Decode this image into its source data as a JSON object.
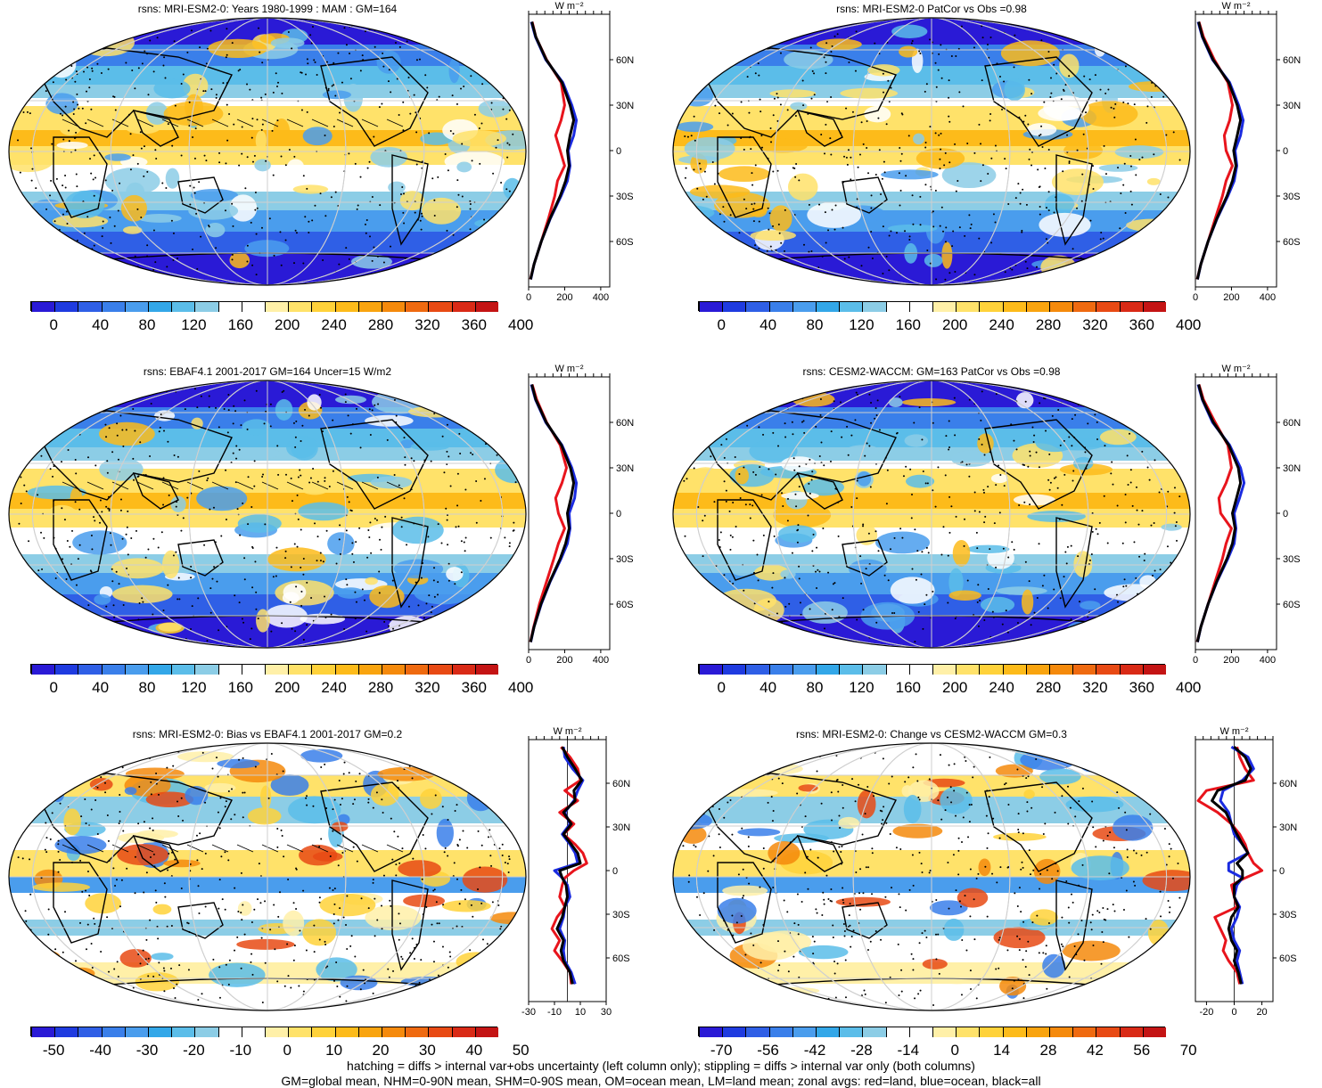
{
  "footer": {
    "line1": "hatching = diffs > internal var+obs uncertainty (left column only); stippling = diffs > internal var only (both columns)",
    "line2": "GM=global mean, NHM=0-90N mean, SHM=0-90S mean, OM=ocean mean, LM=land mean; zonal avgs: red=land, blue=ocean, black=all"
  },
  "units_label": "W m⁻²",
  "lat_labels": [
    "60N",
    "30N",
    "0",
    "30S",
    "60S"
  ],
  "colors": {
    "land": "#e8141c",
    "ocean": "#1a2be0",
    "all": "#000000"
  },
  "abs_palette": [
    "#2a1ad6",
    "#1f3be0",
    "#2f5fe6",
    "#3a7fea",
    "#4a9ded",
    "#33a7e8",
    "#5bbde9",
    "#8ccde6",
    "#ffffff",
    "#ffffff",
    "#fff0a8",
    "#ffe26a",
    "#ffd23a",
    "#fdbb1a",
    "#f9a40f",
    "#f58a0c",
    "#ef6a10",
    "#e84a14",
    "#d92a16",
    "#c41414"
  ],
  "diff_palette": [
    "#2a1ad6",
    "#1f3be0",
    "#2f5fe6",
    "#3a7fea",
    "#4a9ded",
    "#33a7e8",
    "#5bbde9",
    "#8ccde6",
    "#ffffff",
    "#ffffff",
    "#fff0a8",
    "#ffe26a",
    "#ffd23a",
    "#fdbb1a",
    "#f9a40f",
    "#f58a0c",
    "#ef6a10",
    "#e84a14",
    "#d92a16",
    "#c41414"
  ],
  "chart_data": [
    {
      "type": "heatmap",
      "title": "rsns: MRI-ESM2-0: Years 1980-1999 : MAM : GM=164",
      "colorbar": {
        "ticks": [
          "0",
          "40",
          "80",
          "120",
          "160",
          "200",
          "240",
          "280",
          "320",
          "360",
          "400"
        ]
      },
      "zonal": {
        "xlim": [
          0,
          450
        ],
        "xticks": [
          "0",
          "200",
          "400"
        ],
        "lat": [
          85,
          75,
          60,
          45,
          30,
          20,
          10,
          0,
          -10,
          -20,
          -30,
          -45,
          -60,
          -75,
          -85
        ],
        "land": [
          20,
          40,
          100,
          180,
          200,
          180,
          150,
          175,
          200,
          160,
          145,
          110,
          70,
          30,
          10
        ],
        "ocean": [
          15,
          38,
          95,
          190,
          240,
          265,
          250,
          220,
          230,
          215,
          180,
          120,
          70,
          30,
          12
        ],
        "all": [
          18,
          40,
          98,
          185,
          230,
          250,
          230,
          215,
          225,
          205,
          175,
          118,
          70,
          30,
          11
        ]
      }
    },
    {
      "type": "heatmap",
      "title": "rsns: MRI-ESM2-0 PatCor vs Obs =0.98",
      "colorbar": {
        "ticks": [
          "0",
          "40",
          "80",
          "120",
          "160",
          "200",
          "240",
          "280",
          "320",
          "360",
          "400"
        ]
      },
      "zonal": {
        "xlim": [
          0,
          450
        ],
        "xticks": [
          "0",
          "200",
          "400"
        ],
        "lat": [
          85,
          75,
          60,
          45,
          30,
          20,
          10,
          0,
          -10,
          -20,
          -30,
          -45,
          -60,
          -75,
          -85
        ],
        "land": [
          20,
          45,
          105,
          180,
          205,
          190,
          160,
          170,
          205,
          170,
          150,
          110,
          70,
          30,
          10
        ],
        "ocean": [
          15,
          38,
          95,
          190,
          240,
          265,
          250,
          220,
          230,
          215,
          180,
          120,
          70,
          30,
          12
        ],
        "all": [
          18,
          40,
          98,
          185,
          232,
          250,
          232,
          212,
          225,
          205,
          175,
          118,
          70,
          30,
          11
        ]
      }
    },
    {
      "type": "heatmap",
      "title": "rsns: EBAF4.1 2001-2017 GM=164 Uncer=15 W/m2",
      "colorbar": {
        "ticks": [
          "0",
          "40",
          "80",
          "120",
          "160",
          "200",
          "240",
          "280",
          "320",
          "360",
          "400"
        ]
      },
      "zonal": {
        "xlim": [
          0,
          450
        ],
        "xticks": [
          "0",
          "200",
          "400"
        ],
        "lat": [
          85,
          75,
          60,
          45,
          30,
          20,
          10,
          0,
          -10,
          -20,
          -30,
          -45,
          -60,
          -75,
          -85
        ],
        "land": [
          20,
          45,
          100,
          175,
          210,
          185,
          150,
          165,
          200,
          165,
          140,
          100,
          60,
          28,
          10
        ],
        "ocean": [
          15,
          38,
          95,
          185,
          240,
          265,
          255,
          225,
          230,
          215,
          180,
          120,
          70,
          30,
          12
        ],
        "all": [
          18,
          40,
          98,
          182,
          232,
          250,
          235,
          215,
          225,
          205,
          175,
          118,
          68,
          30,
          11
        ]
      }
    },
    {
      "type": "heatmap",
      "title": "rsns: CESM2-WACCM: GM=163 PatCor vs Obs =0.98",
      "colorbar": {
        "ticks": [
          "0",
          "40",
          "80",
          "120",
          "160",
          "200",
          "240",
          "280",
          "320",
          "360",
          "400"
        ]
      },
      "zonal": {
        "xlim": [
          0,
          450
        ],
        "xticks": [
          "0",
          "200",
          "400"
        ],
        "lat": [
          85,
          75,
          60,
          45,
          30,
          20,
          10,
          0,
          -10,
          -20,
          -30,
          -45,
          -60,
          -75,
          -85
        ],
        "land": [
          20,
          45,
          110,
          180,
          200,
          170,
          130,
          140,
          200,
          170,
          150,
          110,
          70,
          30,
          10
        ],
        "ocean": [
          15,
          38,
          95,
          190,
          250,
          270,
          245,
          215,
          225,
          215,
          180,
          120,
          70,
          30,
          12
        ],
        "all": [
          18,
          40,
          100,
          185,
          238,
          250,
          228,
          205,
          220,
          205,
          175,
          118,
          70,
          30,
          11
        ]
      }
    },
    {
      "type": "heatmap",
      "title": "rsns: MRI-ESM2-0: Bias vs EBAF4.1 2001-2017 GM=0.2",
      "colorbar": {
        "ticks": [
          "-50",
          "-40",
          "-30",
          "-20",
          "-10",
          "0",
          "10",
          "20",
          "30",
          "40",
          "50"
        ]
      },
      "zonal": {
        "xlim": [
          -30,
          30
        ],
        "xticks": [
          "-30",
          "-10",
          "10",
          "30"
        ],
        "lat": [
          85,
          78,
          70,
          62,
          55,
          48,
          40,
          32,
          25,
          18,
          12,
          5,
          0,
          -5,
          -10,
          -18,
          -25,
          -32,
          -40,
          -48,
          -55,
          -62,
          -70,
          -78
        ],
        "land": [
          -5,
          2,
          8,
          10,
          -2,
          8,
          -6,
          5,
          -3,
          6,
          12,
          15,
          5,
          -2,
          -4,
          -6,
          -2,
          -8,
          -12,
          -6,
          -10,
          -4,
          2,
          3
        ],
        "ocean": [
          -3,
          -2,
          4,
          12,
          8,
          5,
          -2,
          2,
          -4,
          2,
          6,
          8,
          -10,
          -4,
          0,
          2,
          -2,
          -3,
          -6,
          -2,
          -3,
          -2,
          3,
          6
        ],
        "all": [
          -4,
          0,
          6,
          11,
          5,
          6,
          -3,
          3,
          -3,
          3,
          8,
          10,
          -6,
          -4,
          -1,
          0,
          -2,
          -4,
          -8,
          -3,
          -5,
          -3,
          2,
          4
        ]
      }
    },
    {
      "type": "heatmap",
      "title": "rsns: MRI-ESM2-0: Change vs CESM2-WACCM GM=0.3",
      "colorbar": {
        "ticks": [
          "-70",
          "-56",
          "-42",
          "-28",
          "-14",
          "0",
          "14",
          "28",
          "42",
          "56",
          "70"
        ]
      },
      "zonal": {
        "xlim": [
          -28,
          28
        ],
        "xticks": [
          "-20",
          "0",
          "20"
        ],
        "lat": [
          85,
          78,
          70,
          62,
          55,
          48,
          40,
          32,
          25,
          18,
          12,
          5,
          0,
          -5,
          -10,
          -18,
          -25,
          -32,
          -40,
          -48,
          -55,
          -62,
          -70,
          -78
        ],
        "land": [
          2,
          4,
          8,
          14,
          -20,
          -26,
          -12,
          -2,
          4,
          8,
          10,
          14,
          20,
          8,
          -2,
          0,
          2,
          -14,
          -10,
          -6,
          -8,
          -4,
          2,
          4
        ],
        "ocean": [
          -2,
          10,
          14,
          6,
          -8,
          -10,
          -4,
          -2,
          0,
          6,
          10,
          -4,
          -4,
          6,
          2,
          0,
          4,
          2,
          -2,
          0,
          4,
          2,
          4,
          6
        ],
        "all": [
          0,
          8,
          12,
          8,
          -12,
          -16,
          -6,
          -2,
          2,
          6,
          10,
          2,
          6,
          6,
          0,
          0,
          3,
          -2,
          -4,
          -2,
          2,
          0,
          3,
          5
        ]
      }
    }
  ]
}
